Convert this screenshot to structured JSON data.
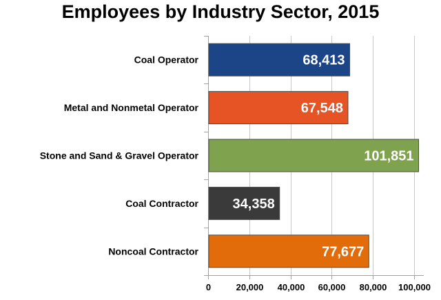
{
  "chart_data": {
    "type": "bar",
    "orientation": "horizontal",
    "title": "Employees by Industry Sector, 2015",
    "xlabel": "",
    "ylabel": "",
    "categories": [
      "Coal Operator",
      "Metal and Nonmetal Operator",
      "Stone and Sand & Gravel Operator",
      "Coal Contractor",
      "Noncoal Contractor"
    ],
    "values": [
      68413,
      67548,
      101851,
      34358,
      77677
    ],
    "data_labels": [
      "68,413",
      "67,548",
      "101,851",
      "34,358",
      "77,677"
    ],
    "colors": [
      "#1c4587",
      "#e65324",
      "#7fa24e",
      "#3a3a3a",
      "#e36c0a"
    ],
    "xlim": [
      0,
      100000
    ],
    "x_ticks": [
      0,
      20000,
      40000,
      60000,
      80000,
      100000
    ],
    "x_tick_labels": [
      "0",
      "20,000",
      "40,000",
      "60,000",
      "80,000",
      "100,000"
    ],
    "grid": true,
    "legend": "none"
  }
}
